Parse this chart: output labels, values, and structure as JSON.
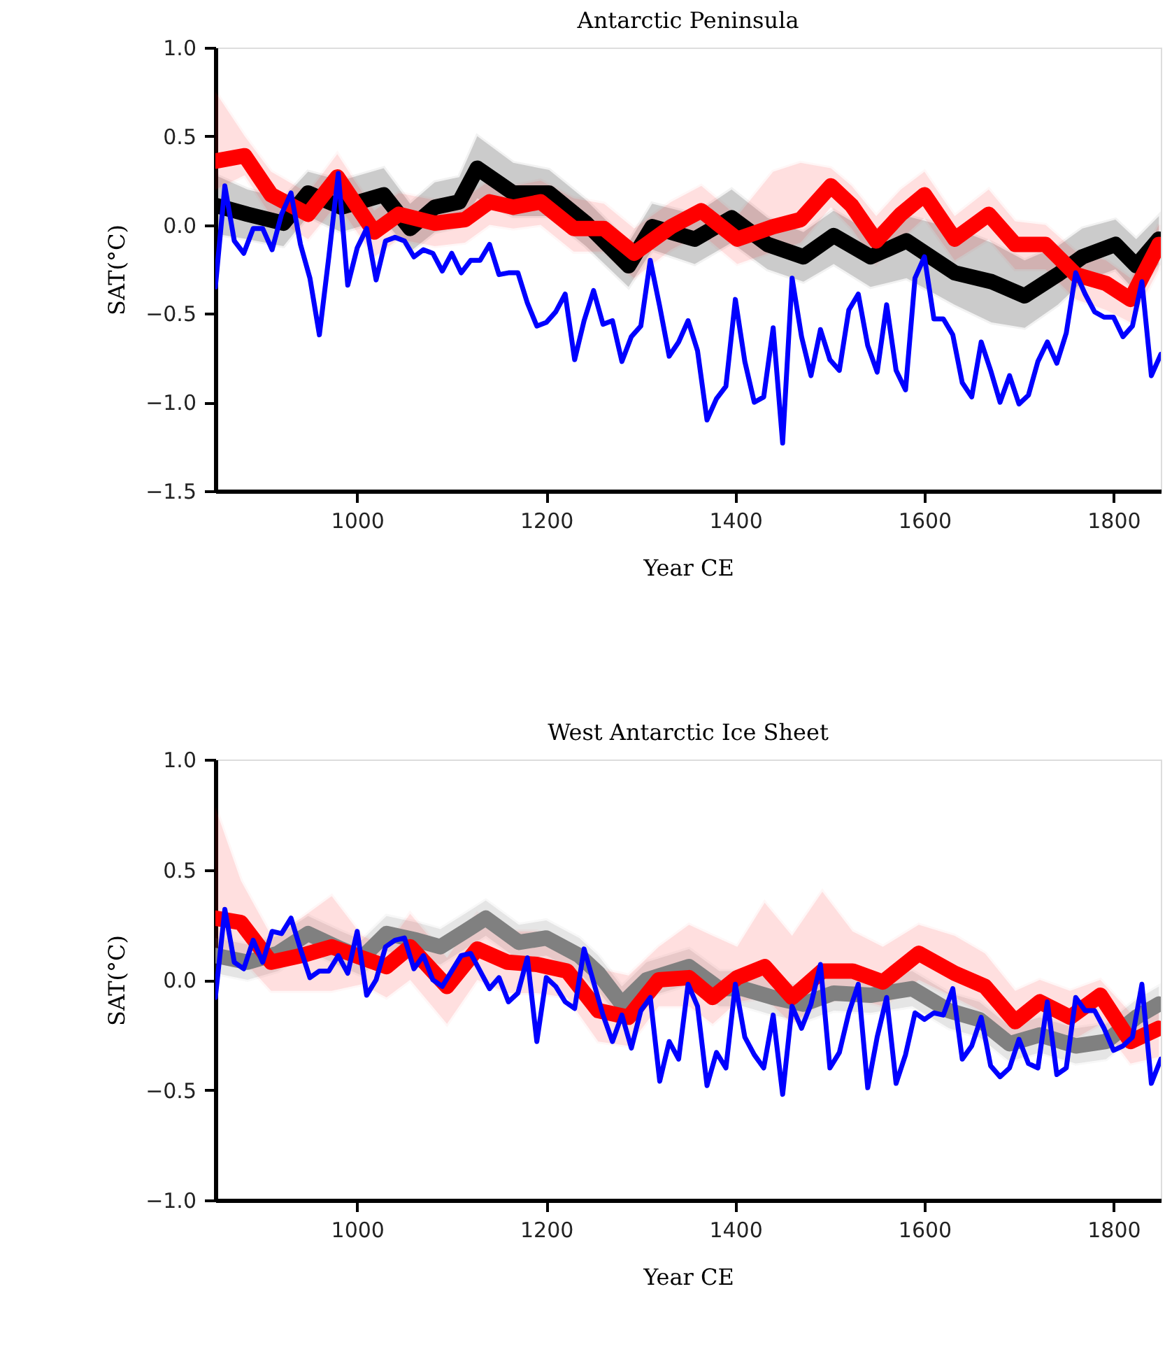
{
  "chart_data": [
    {
      "type": "line",
      "title": "Antarctic Peninsula",
      "xlabel": "Year CE",
      "ylabel": "SAT(°C)",
      "xlim": [
        850,
        1850
      ],
      "xticks": [
        1000,
        1200,
        1400,
        1600,
        1800
      ],
      "ylim": [
        -1.5,
        1.0
      ],
      "yticks": [
        {
          "value": -1.5,
          "label": "−1.5"
        },
        {
          "value": -1.0,
          "label": "−1.0"
        },
        {
          "value": -0.5,
          "label": "−0.5"
        },
        {
          "value": 0.0,
          "label": "0.0"
        },
        {
          "value": 0.5,
          "label": "0.5"
        },
        {
          "value": 1.0,
          "label": "1.0"
        }
      ],
      "grid": false,
      "legend": false,
      "marker": "none",
      "line_style": "solid",
      "x": [
        850,
        860,
        870,
        880,
        890,
        900,
        910,
        920,
        930,
        940,
        950,
        960,
        970,
        980,
        990,
        1000,
        1010,
        1020,
        1030,
        1040,
        1050,
        1060,
        1070,
        1080,
        1090,
        1100,
        1110,
        1120,
        1130,
        1140,
        1150,
        1160,
        1170,
        1180,
        1190,
        1200,
        1210,
        1220,
        1230,
        1240,
        1250,
        1260,
        1270,
        1280,
        1290,
        1300,
        1310,
        1320,
        1330,
        1340,
        1350,
        1360,
        1370,
        1380,
        1390,
        1400,
        1410,
        1420,
        1430,
        1440,
        1450,
        1460,
        1470,
        1480,
        1490,
        1500,
        1510,
        1520,
        1530,
        1540,
        1550,
        1560,
        1570,
        1580,
        1590,
        1600,
        1610,
        1620,
        1630,
        1640,
        1650,
        1660,
        1670,
        1680,
        1690,
        1700,
        1710,
        1720,
        1730,
        1740,
        1750,
        1760,
        1770,
        1780,
        1790,
        1800,
        1810,
        1820,
        1830,
        1840,
        1850
      ],
      "series": [
        {
          "color": "#000000",
          "x": [
            850,
            884,
            922,
            948,
            983,
            1028,
            1056,
            1082,
            1108,
            1127,
            1165,
            1203,
            1242,
            1287,
            1312,
            1357,
            1396,
            1434,
            1472,
            1504,
            1543,
            1581,
            1632,
            1671,
            1706,
            1741,
            1767,
            1802,
            1824,
            1848
          ],
          "values": [
            0.11,
            0.06,
            0.01,
            0.18,
            0.1,
            0.17,
            -0.02,
            0.1,
            0.13,
            0.32,
            0.18,
            0.18,
            0.01,
            -0.23,
            -0.01,
            -0.08,
            0.04,
            -0.11,
            -0.18,
            -0.06,
            -0.18,
            -0.09,
            -0.27,
            -0.32,
            -0.4,
            -0.28,
            -0.18,
            -0.11,
            -0.23,
            -0.08
          ],
          "upper": [
            0.28,
            0.2,
            0.15,
            0.3,
            0.25,
            0.32,
            0.12,
            0.24,
            0.27,
            0.5,
            0.35,
            0.31,
            0.14,
            -0.1,
            0.12,
            0.06,
            0.2,
            0.04,
            -0.04,
            0.08,
            -0.04,
            0.05,
            -0.02,
            -0.1,
            -0.2,
            -0.12,
            -0.02,
            0.03,
            -0.08,
            0.05
          ],
          "lower": [
            -0.05,
            -0.08,
            -0.12,
            0.05,
            -0.04,
            0.03,
            -0.15,
            -0.04,
            -0.01,
            0.15,
            0.05,
            0.05,
            -0.12,
            -0.35,
            -0.14,
            -0.22,
            -0.1,
            -0.25,
            -0.32,
            -0.22,
            -0.35,
            -0.3,
            -0.45,
            -0.55,
            -0.58,
            -0.45,
            -0.32,
            -0.25,
            -0.38,
            -0.22
          ]
        },
        {
          "color": "#ff0000",
          "x": [
            850,
            881,
            909,
            948,
            979,
            1018,
            1044,
            1082,
            1114,
            1140,
            1165,
            1194,
            1229,
            1261,
            1293,
            1332,
            1364,
            1402,
            1440,
            1469,
            1501,
            1523,
            1549,
            1575,
            1600,
            1632,
            1668,
            1696,
            1728,
            1760,
            1792,
            1818,
            1848
          ],
          "values": [
            0.36,
            0.39,
            0.17,
            0.06,
            0.27,
            -0.04,
            0.06,
            0.01,
            0.03,
            0.13,
            0.1,
            0.13,
            -0.02,
            -0.02,
            -0.16,
            -0.01,
            0.08,
            -0.08,
            -0.01,
            0.03,
            0.22,
            0.11,
            -0.09,
            0.06,
            0.17,
            -0.08,
            0.06,
            -0.11,
            -0.11,
            -0.28,
            -0.33,
            -0.42,
            -0.11
          ],
          "upper": [
            0.75,
            0.5,
            0.3,
            0.18,
            0.4,
            0.08,
            0.18,
            0.14,
            0.15,
            0.25,
            0.22,
            0.25,
            0.15,
            0.12,
            -0.02,
            0.13,
            0.22,
            0.05,
            0.3,
            0.35,
            0.32,
            0.22,
            0.05,
            0.2,
            0.3,
            0.05,
            0.2,
            0.02,
            0,
            -0.15,
            -0.2,
            -0.3,
            0.0
          ],
          "lower": [
            0.2,
            0.28,
            0.05,
            -0.08,
            0.12,
            -0.18,
            -0.08,
            -0.12,
            -0.1,
            0.0,
            -0.02,
            0.0,
            -0.15,
            -0.15,
            -0.3,
            -0.14,
            -0.05,
            -0.22,
            -0.15,
            -0.1,
            0.1,
            -0.02,
            -0.22,
            -0.08,
            0.04,
            -0.2,
            -0.08,
            -0.25,
            -0.25,
            -0.42,
            -0.48,
            -0.55,
            -0.25
          ]
        },
        {
          "color": "#0000ff",
          "values": [
            -0.35,
            0.22,
            -0.09,
            -0.16,
            -0.02,
            -0.02,
            -0.14,
            0.06,
            0.18,
            -0.11,
            -0.3,
            -0.62,
            -0.18,
            0.29,
            -0.34,
            -0.13,
            -0.02,
            -0.31,
            -0.09,
            -0.07,
            -0.09,
            -0.18,
            -0.14,
            -0.16,
            -0.26,
            -0.16,
            -0.27,
            -0.2,
            -0.2,
            -0.11,
            -0.28,
            -0.27,
            -0.27,
            -0.44,
            -0.57,
            -0.55,
            -0.49,
            -0.39,
            -0.76,
            -0.54,
            -0.37,
            -0.56,
            -0.54,
            -0.77,
            -0.63,
            -0.57,
            -0.2,
            -0.46,
            -0.74,
            -0.66,
            -0.54,
            -0.71,
            -1.1,
            -0.98,
            -0.91,
            -0.42,
            -0.77,
            -1.0,
            -0.97,
            -0.58,
            -1.23,
            -0.3,
            -0.63,
            -0.85,
            -0.59,
            -0.76,
            -0.82,
            -0.48,
            -0.39,
            -0.68,
            -0.83,
            -0.45,
            -0.82,
            -0.93,
            -0.3,
            -0.18,
            -0.53,
            -0.53,
            -0.62,
            -0.89,
            -0.97,
            -0.66,
            -0.82,
            -1.0,
            -0.85,
            -1.01,
            -0.96,
            -0.77,
            -0.66,
            -0.78,
            -0.61,
            -0.27,
            -0.39,
            -0.49,
            -0.52,
            -0.52,
            -0.63,
            -0.57,
            -0.32,
            -0.85,
            -0.73
          ]
        }
      ]
    },
    {
      "type": "line",
      "title": "West Antarctic Ice Sheet",
      "xlabel": "Year CE",
      "ylabel": "SAT(°C)",
      "xlim": [
        850,
        1850
      ],
      "xticks": [
        1000,
        1200,
        1400,
        1600,
        1800
      ],
      "ylim": [
        -1.0,
        1.0
      ],
      "yticks": [
        {
          "value": -1.0,
          "label": "−1.0"
        },
        {
          "value": -0.5,
          "label": "−0.5"
        },
        {
          "value": 0.0,
          "label": "0.0"
        },
        {
          "value": 0.5,
          "label": "0.5"
        },
        {
          "value": 1.0,
          "label": "1.0"
        }
      ],
      "grid": false,
      "legend": false,
      "marker": "none",
      "line_style": "solid",
      "x": [
        850,
        860,
        870,
        880,
        890,
        900,
        910,
        920,
        930,
        940,
        950,
        960,
        970,
        980,
        990,
        1000,
        1010,
        1020,
        1030,
        1040,
        1050,
        1060,
        1070,
        1080,
        1090,
        1100,
        1110,
        1120,
        1130,
        1140,
        1150,
        1160,
        1170,
        1180,
        1190,
        1200,
        1210,
        1220,
        1230,
        1240,
        1250,
        1260,
        1270,
        1280,
        1290,
        1300,
        1310,
        1320,
        1330,
        1340,
        1350,
        1360,
        1370,
        1380,
        1390,
        1400,
        1410,
        1420,
        1430,
        1440,
        1450,
        1460,
        1470,
        1480,
        1490,
        1500,
        1510,
        1520,
        1530,
        1540,
        1550,
        1560,
        1570,
        1580,
        1590,
        1600,
        1610,
        1620,
        1630,
        1640,
        1650,
        1660,
        1670,
        1680,
        1690,
        1700,
        1710,
        1720,
        1730,
        1740,
        1750,
        1760,
        1770,
        1780,
        1790,
        1800,
        1810,
        1820,
        1830,
        1840,
        1850
      ],
      "series": [
        {
          "color": "#808080",
          "x": [
            850,
            884,
            916,
            948,
            983,
            1005,
            1031,
            1063,
            1088,
            1114,
            1136,
            1171,
            1200,
            1235,
            1255,
            1280,
            1306,
            1351,
            1383,
            1408,
            1440,
            1472,
            1504,
            1543,
            1587,
            1626,
            1658,
            1690,
            1722,
            1760,
            1792,
            1824,
            1848
          ],
          "values": [
            0.11,
            0.08,
            0.12,
            0.21,
            0.14,
            0.1,
            0.21,
            0.18,
            0.15,
            0.22,
            0.28,
            0.17,
            0.19,
            0.11,
            0.03,
            -0.11,
            0.0,
            0.06,
            -0.04,
            -0.04,
            -0.08,
            -0.11,
            -0.06,
            -0.07,
            -0.04,
            -0.14,
            -0.18,
            -0.29,
            -0.25,
            -0.3,
            -0.28,
            -0.17,
            -0.11
          ],
          "upper": [
            0.19,
            0.16,
            0.2,
            0.29,
            0.22,
            0.18,
            0.29,
            0.26,
            0.23,
            0.3,
            0.36,
            0.25,
            0.27,
            0.19,
            0.11,
            -0.03,
            0.08,
            0.14,
            0.04,
            0.04,
            0,
            -0.03,
            0.02,
            0.01,
            0.04,
            -0.06,
            -0.1,
            -0.21,
            -0.17,
            -0.22,
            -0.2,
            -0.09,
            -0.03
          ],
          "lower": [
            0.03,
            0,
            0.04,
            0.13,
            0.06,
            0.02,
            0.13,
            0.1,
            0.07,
            0.14,
            0.2,
            0.09,
            0.11,
            0.03,
            -0.05,
            -0.19,
            -0.08,
            -0.02,
            -0.12,
            -0.12,
            -0.16,
            -0.19,
            -0.14,
            -0.15,
            -0.12,
            -0.22,
            -0.26,
            -0.37,
            -0.33,
            -0.38,
            -0.36,
            -0.25,
            -0.19
          ]
        },
        {
          "color": "#ff0000",
          "x": [
            850,
            877,
            909,
            941,
            973,
            1005,
            1031,
            1056,
            1095,
            1127,
            1159,
            1190,
            1222,
            1255,
            1287,
            1319,
            1351,
            1376,
            1402,
            1431,
            1460,
            1492,
            1524,
            1556,
            1594,
            1632,
            1664,
            1696,
            1722,
            1754,
            1786,
            1818,
            1848
          ],
          "values": [
            0.28,
            0.26,
            0.08,
            0.11,
            0.15,
            0.1,
            0.06,
            0.15,
            -0.03,
            0.14,
            0.08,
            0.07,
            0.04,
            -0.14,
            -0.17,
            0.0,
            0.01,
            -0.08,
            0.01,
            0.06,
            -0.08,
            0.04,
            0.04,
            -0.01,
            0.12,
            0.03,
            -0.03,
            -0.19,
            -0.1,
            -0.17,
            -0.07,
            -0.28,
            -0.22
          ],
          "upper": [
            0.78,
            0.45,
            0.2,
            0.28,
            0.38,
            0.2,
            0.15,
            0.3,
            0.1,
            0.3,
            0.22,
            0.22,
            0.15,
            0.05,
            0.02,
            0.15,
            0.25,
            0.2,
            0.15,
            0.35,
            0.2,
            0.4,
            0.22,
            0.15,
            0.25,
            0.2,
            0.12,
            -0.05,
            0.0,
            -0.05,
            0.0,
            -0.15,
            -0.1
          ],
          "lower": [
            0.1,
            0.1,
            -0.05,
            -0.05,
            -0.05,
            -0.02,
            -0.08,
            0.0,
            -0.2,
            0.0,
            -0.06,
            -0.06,
            -0.08,
            -0.28,
            -0.3,
            -0.12,
            -0.12,
            -0.2,
            -0.1,
            -0.08,
            -0.2,
            -0.1,
            -0.08,
            -0.12,
            0.0,
            -0.08,
            -0.15,
            -0.3,
            -0.22,
            -0.28,
            -0.2,
            -0.38,
            -0.35
          ]
        },
        {
          "color": "#0000ff",
          "values": [
            -0.08,
            0.32,
            0.08,
            0.05,
            0.18,
            0.08,
            0.22,
            0.21,
            0.28,
            0.14,
            0.01,
            0.04,
            0.04,
            0.11,
            0.03,
            0.22,
            -0.07,
            0.0,
            0.15,
            0.18,
            0.19,
            0.05,
            0.11,
            0.0,
            -0.03,
            0.04,
            0.11,
            0.12,
            0.04,
            -0.04,
            0.01,
            -0.1,
            -0.06,
            0.1,
            -0.28,
            0.01,
            -0.03,
            -0.1,
            -0.13,
            0.14,
            -0.01,
            -0.16,
            -0.28,
            -0.16,
            -0.31,
            -0.14,
            -0.08,
            -0.46,
            -0.28,
            -0.36,
            -0.02,
            -0.12,
            -0.48,
            -0.33,
            -0.4,
            -0.02,
            -0.26,
            -0.34,
            -0.4,
            -0.16,
            -0.52,
            -0.12,
            -0.22,
            -0.11,
            0.07,
            -0.4,
            -0.33,
            -0.15,
            -0.02,
            -0.49,
            -0.26,
            -0.08,
            -0.47,
            -0.34,
            -0.15,
            -0.18,
            -0.15,
            -0.16,
            -0.04,
            -0.36,
            -0.3,
            -0.17,
            -0.39,
            -0.44,
            -0.4,
            -0.27,
            -0.38,
            -0.4,
            -0.1,
            -0.43,
            -0.4,
            -0.08,
            -0.14,
            -0.14,
            -0.22,
            -0.32,
            -0.3,
            -0.26,
            -0.02,
            -0.47,
            -0.36
          ]
        }
      ]
    }
  ]
}
